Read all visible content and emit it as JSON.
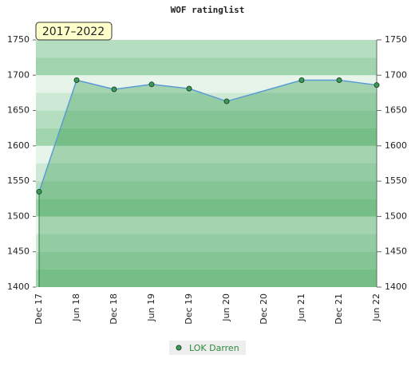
{
  "chart_data": {
    "type": "line",
    "title": "WOF ratinglist",
    "annotation": "2017–2022",
    "categories": [
      "Dec 17",
      "Jun 18",
      "Dec 18",
      "Jun 19",
      "Dec 19",
      "Jun 20",
      "Dec 20",
      "Jun 21",
      "Dec 21",
      "Jun 22"
    ],
    "series": [
      {
        "name": "LOK Darren",
        "color": "#5b9bd5",
        "values": [
          1535,
          1693,
          1680,
          1687,
          1681,
          1663,
          null,
          1693,
          1693,
          1686
        ]
      }
    ],
    "ylim": [
      1400,
      1750
    ],
    "yticks": [
      1400,
      1450,
      1500,
      1550,
      1600,
      1650,
      1700,
      1750
    ],
    "y2lim": [
      1400,
      1750
    ],
    "y2ticks": [
      1400,
      1450,
      1500,
      1550,
      1600,
      1650,
      1700,
      1750
    ]
  }
}
